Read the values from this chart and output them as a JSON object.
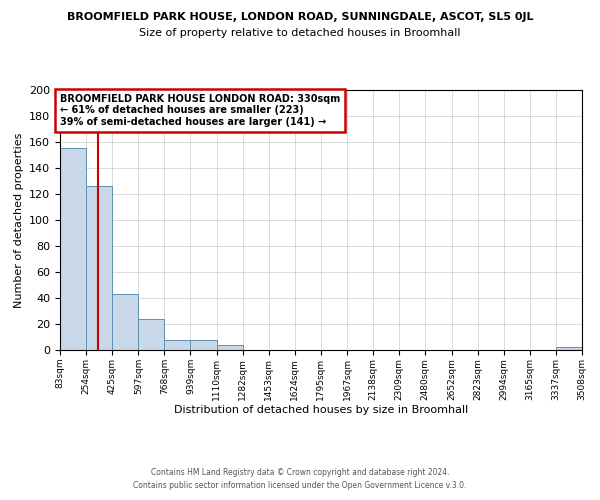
{
  "title": "BROOMFIELD PARK HOUSE, LONDON ROAD, SUNNINGDALE, ASCOT, SL5 0JL",
  "subtitle": "Size of property relative to detached houses in Broomhall",
  "xlabel": "Distribution of detached houses by size in Broomhall",
  "ylabel": "Number of detached properties",
  "bin_edges": [
    83,
    254,
    425,
    597,
    768,
    939,
    1110,
    1282,
    1453,
    1624,
    1795,
    1967,
    2138,
    2309,
    2480,
    2652,
    2823,
    2994,
    3165,
    3337,
    3508
  ],
  "bin_labels": [
    "83sqm",
    "254sqm",
    "425sqm",
    "597sqm",
    "768sqm",
    "939sqm",
    "1110sqm",
    "1282sqm",
    "1453sqm",
    "1624sqm",
    "1795sqm",
    "1967sqm",
    "2138sqm",
    "2309sqm",
    "2480sqm",
    "2652sqm",
    "2823sqm",
    "2994sqm",
    "3165sqm",
    "3337sqm",
    "3508sqm"
  ],
  "counts": [
    155,
    126,
    43,
    24,
    8,
    8,
    4,
    0,
    0,
    0,
    0,
    0,
    0,
    0,
    0,
    0,
    0,
    0,
    0,
    2
  ],
  "bar_color": "#c8d8e8",
  "bar_edge_color": "#6090b0",
  "property_value": 330,
  "red_line_color": "#cc0000",
  "annotation_box_edge_color": "#cc0000",
  "annotation_title": "BROOMFIELD PARK HOUSE LONDON ROAD: 330sqm",
  "annotation_line1": "← 61% of detached houses are smaller (223)",
  "annotation_line2": "39% of semi-detached houses are larger (141) →",
  "ylim": [
    0,
    200
  ],
  "yticks": [
    0,
    20,
    40,
    60,
    80,
    100,
    120,
    140,
    160,
    180,
    200
  ],
  "footer1": "Contains HM Land Registry data © Crown copyright and database right 2024.",
  "footer2": "Contains public sector information licensed under the Open Government Licence v.3.0.",
  "background_color": "#ffffff",
  "grid_color": "#cccccc"
}
